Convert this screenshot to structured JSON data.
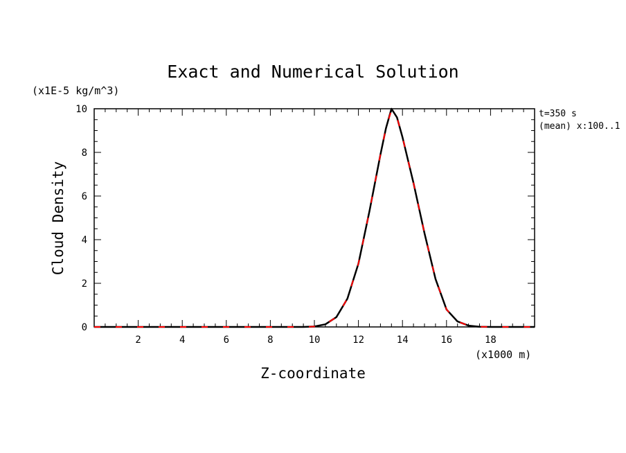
{
  "chart_data": {
    "type": "line",
    "title": "Exact and Numerical Solution",
    "xlabel": "Z-coordinate",
    "ylabel": "Cloud Density",
    "x_unit_label": "(x1000 m)",
    "y_unit_label": "(x1E-5 kg/m^3)",
    "annotations": [
      "t=350 s",
      "(mean) x:100..1"
    ],
    "xlim": [
      0,
      20
    ],
    "ylim": [
      0,
      10
    ],
    "x_ticks": [
      2,
      4,
      6,
      8,
      10,
      12,
      14,
      16,
      18
    ],
    "y_ticks": [
      0,
      2,
      4,
      6,
      8,
      10
    ],
    "grid": false,
    "x": [
      0,
      1,
      2,
      3,
      4,
      5,
      6,
      7,
      8,
      9,
      9.5,
      10,
      10.5,
      11,
      11.5,
      12,
      12.5,
      13,
      13.25,
      13.5,
      13.75,
      14,
      14.5,
      15,
      15.5,
      16,
      16.5,
      17,
      17.5,
      18,
      19,
      20
    ],
    "series": [
      {
        "color": "#000000",
        "style": "solid",
        "values": [
          0,
          0,
          0,
          0,
          0,
          0,
          0,
          0,
          0,
          0,
          0,
          0.02,
          0.12,
          0.45,
          1.3,
          2.9,
          5.3,
          7.9,
          9.1,
          10.0,
          9.6,
          8.7,
          6.6,
          4.3,
          2.2,
          0.8,
          0.25,
          0.06,
          0.01,
          0,
          0,
          0
        ]
      },
      {
        "color": "#ff0000",
        "style": "dashed",
        "values": [
          0,
          0,
          0,
          0,
          0,
          0,
          0,
          0,
          0,
          0,
          0,
          0.02,
          0.12,
          0.45,
          1.3,
          2.9,
          5.3,
          7.9,
          9.1,
          9.95,
          9.6,
          8.7,
          6.6,
          4.3,
          2.2,
          0.8,
          0.25,
          0.06,
          0.01,
          0,
          0,
          0
        ]
      }
    ]
  }
}
